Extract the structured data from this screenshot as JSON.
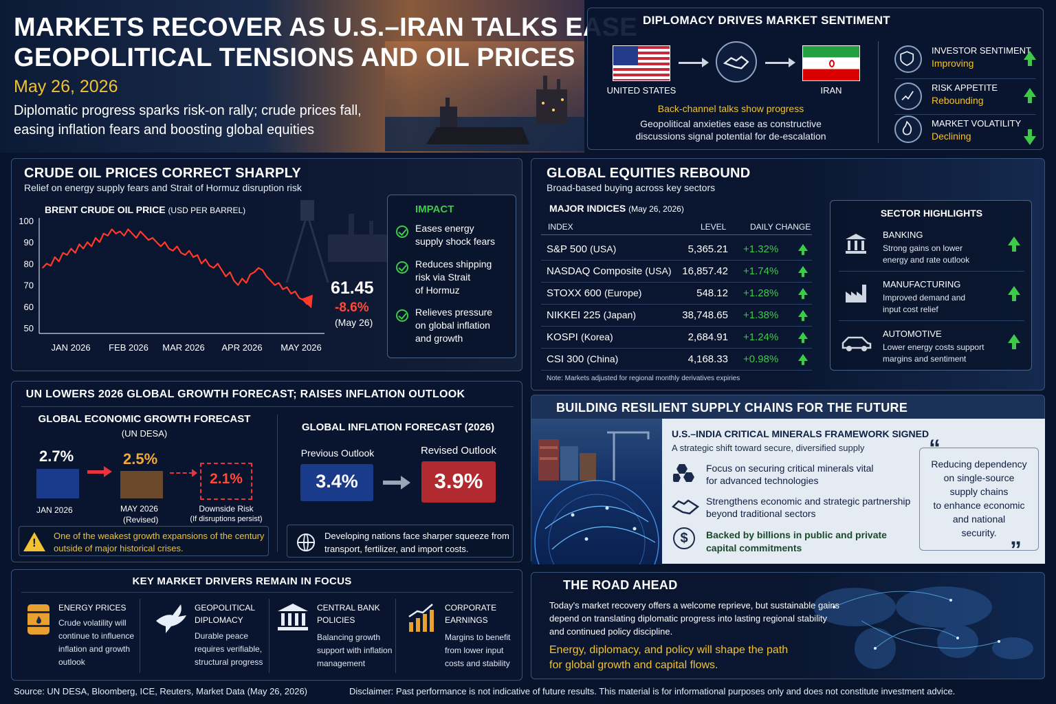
{
  "header": {
    "title_line1": "MARKETS RECOVER AS U.S.–IRAN TALKS EASE",
    "title_line2": "GEOPOLITICAL TENSIONS AND OIL PRICES",
    "date": "May 26, 2026",
    "subtitle_line1": "Diplomatic progress sparks risk-on rally; crude prices fall,",
    "subtitle_line2": "easing inflation fears and boosting global equities"
  },
  "diplomacy": {
    "title": "DIPLOMACY DRIVES MARKET SENTIMENT",
    "us_label": "UNITED STATES",
    "iran_label": "IRAN",
    "highlight": "Back-channel talks show progress",
    "desc_line1": "Geopolitical anxieties ease as constructive",
    "desc_line2": "discussions signal potential for de-escalation",
    "indicators": [
      {
        "label": "INVESTOR SENTIMENT",
        "status": "Improving",
        "direction": "up",
        "icon": "shield-icon"
      },
      {
        "label": "RISK APPETITE",
        "status": "Rebounding",
        "direction": "up",
        "icon": "chart-icon"
      },
      {
        "label": "MARKET VOLATILITY",
        "status": "Declining",
        "direction": "down",
        "icon": "flame-icon"
      }
    ]
  },
  "oil": {
    "title": "CRUDE OIL PRICES CORRECT SHARPLY",
    "subtitle": "Relief on energy supply fears and Strait of Hormuz disruption risk",
    "chart_title": "BRENT CRUDE OIL PRICE",
    "chart_unit": "(USD PER BARREL)",
    "price": "61.45",
    "change": "-8.6%",
    "price_date": "(May 26)",
    "impact_title": "IMPACT",
    "impacts": [
      {
        "line1": "Eases energy",
        "line2": "supply shock fears",
        "line3": ""
      },
      {
        "line1": "Reduces shipping",
        "line2": "risk via Strait",
        "line3": "of Hormuz"
      },
      {
        "line1": "Relieves pressure",
        "line2": "on global inflation",
        "line3": "and growth"
      }
    ]
  },
  "chart_data": {
    "type": "line",
    "title": "BRENT CRUDE OIL PRICE",
    "ylabel": "(USD PER BARREL)",
    "xlabel": "",
    "ylim": [
      50,
      100
    ],
    "yticks": [
      "100",
      "90",
      "80",
      "70",
      "60",
      "50"
    ],
    "x_tick_labels": [
      "JAN 2026",
      "FEB 2026",
      "MAR 2026",
      "APR 2026",
      "MAY 2026"
    ],
    "grid": false,
    "series": [
      {
        "values": [
          78,
          80,
          79,
          83,
          81,
          85,
          84,
          87,
          85,
          89,
          87,
          90,
          88,
          92,
          90,
          94,
          93,
          96,
          94,
          95,
          93,
          96,
          94,
          92,
          95,
          93,
          91,
          92,
          90,
          88,
          90,
          87,
          86,
          88,
          85,
          84,
          86,
          83,
          84,
          80,
          82,
          79,
          78,
          80,
          77,
          74,
          76,
          72,
          70,
          73,
          71,
          75,
          76,
          78,
          77,
          74,
          72,
          70,
          71,
          68,
          69,
          66,
          67,
          64,
          63,
          61
        ]
      }
    ]
  },
  "equities": {
    "title": "GLOBAL EQUITIES REBOUND",
    "subtitle": "Broad-based buying across key sectors",
    "table_title": "MAJOR INDICES",
    "table_date": "(May 26, 2026)",
    "col_index": "INDEX",
    "col_level": "LEVEL",
    "col_change": "DAILY CHANGE",
    "rows": [
      {
        "name": "S&P 500",
        "region": "(USA)",
        "level": "5,365.21",
        "change": "+1.32%"
      },
      {
        "name": "NASDAQ Composite",
        "region": "(USA)",
        "level": "16,857.42",
        "change": "+1.74%"
      },
      {
        "name": "STOXX 600",
        "region": "(Europe)",
        "level": "548.12",
        "change": "+1.28%"
      },
      {
        "name": "NIKKEI 225",
        "region": "(Japan)",
        "level": "38,748.65",
        "change": "+1.38%"
      },
      {
        "name": "KOSPI",
        "region": "(Korea)",
        "level": "2,684.91",
        "change": "+1.24%"
      },
      {
        "name": "CSI 300",
        "region": "(China)",
        "level": "4,168.33",
        "change": "+0.98%"
      }
    ],
    "note": "Note: Markets adjusted for regional monthly derivatives expiries",
    "sector_title": "SECTOR HIGHLIGHTS",
    "sectors": [
      {
        "name": "BANKING",
        "line1": "Strong gains on lower",
        "line2": "energy and rate outlook",
        "icon": "bank-icon"
      },
      {
        "name": "MANUFACTURING",
        "line1": "Improved demand and",
        "line2": "input cost relief",
        "icon": "factory-icon"
      },
      {
        "name": "AUTOMOTIVE",
        "line1": "Lower energy costs support",
        "line2": "margins and sentiment",
        "icon": "car-icon"
      }
    ]
  },
  "un": {
    "title": "UN LOWERS 2026 GLOBAL GROWTH FORECAST; RAISES INFLATION OUTLOOK",
    "growth_title": "GLOBAL ECONOMIC GROWTH FORECAST",
    "growth_source": "(UN DESA)",
    "growth_jan_value": "2.7%",
    "growth_jan_label": "JAN 2026",
    "growth_may_value": "2.5%",
    "growth_may_label": "MAY 2026",
    "growth_may_sub": "(Revised)",
    "growth_risk_value": "2.1%",
    "growth_risk_label": "Downside Risk",
    "growth_risk_sub": "(If disruptions persist)",
    "warning_line1": "One of the weakest growth expansions of the century",
    "warning_line2": "outside of major historical crises.",
    "inflation_title": "GLOBAL INFLATION FORECAST (2026)",
    "prev_label": "Previous Outlook",
    "prev_value": "3.4%",
    "rev_label": "Revised Outlook",
    "rev_value": "3.9%",
    "dev_line1": "Developing nations face sharper squeeze from",
    "dev_line2": "transport, fertilizer, and import costs."
  },
  "supply": {
    "title": "BUILDING RESILIENT SUPPLY CHAINS FOR THE FUTURE",
    "sub_title": "U.S.–INDIA CRITICAL MINERALS FRAMEWORK SIGNED",
    "sub_desc": "A strategic shift toward secure, diversified supply",
    "points": [
      {
        "line1": "Focus on securing critical minerals vital",
        "line2": "for advanced technologies",
        "icon": "minerals-icon"
      },
      {
        "line1": "Strengthens economic and strategic partnership",
        "line2": "beyond traditional sectors",
        "icon": "handshake-icon"
      },
      {
        "line1": "Backed by billions in public and private",
        "line2": "capital commitments",
        "icon": "dollar-icon"
      }
    ],
    "quote_lines": [
      "Reducing dependency",
      "on single-source",
      "supply chains",
      "to enhance economic",
      "and national",
      "security."
    ]
  },
  "drivers": {
    "title": "KEY MARKET DRIVERS REMAIN IN FOCUS",
    "items": [
      {
        "name1": "ENERGY PRICES",
        "name2": "",
        "lines": [
          "Crude volatility will",
          "continue to influence",
          "inflation and growth",
          "outlook"
        ],
        "icon": "oil-barrel-icon"
      },
      {
        "name1": "GEOPOLITICAL",
        "name2": "DIPLOMACY",
        "lines": [
          "Durable peace",
          "requires verifiable,",
          "structural progress"
        ],
        "icon": "dove-icon"
      },
      {
        "name1": "CENTRAL BANK",
        "name2": "POLICIES",
        "lines": [
          "Balancing growth",
          "support with inflation",
          "management"
        ],
        "icon": "bank-icon"
      },
      {
        "name1": "CORPORATE",
        "name2": "EARNINGS",
        "lines": [
          "Margins to benefit",
          "from lower input",
          "costs and stability"
        ],
        "icon": "growth-chart-icon"
      }
    ]
  },
  "road": {
    "title": "THE ROAD AHEAD",
    "lines": [
      "Today's market recovery offers a welcome reprieve, but sustainable gains",
      "depend on translating diplomatic progress into lasting regional stability",
      "and continued policy discipline."
    ],
    "highlight_line1": "Energy, diplomacy, and policy will shape the path",
    "highlight_line2": "for global growth and capital flows."
  },
  "footer": {
    "source": "Source: UN DESA, Bloomberg, ICE, Reuters, Market Data (May 26, 2026)",
    "disclaimer": "Disclaimer: Past performance is not indicative of future results. This material is for informational purposes only and does not constitute investment advice."
  }
}
